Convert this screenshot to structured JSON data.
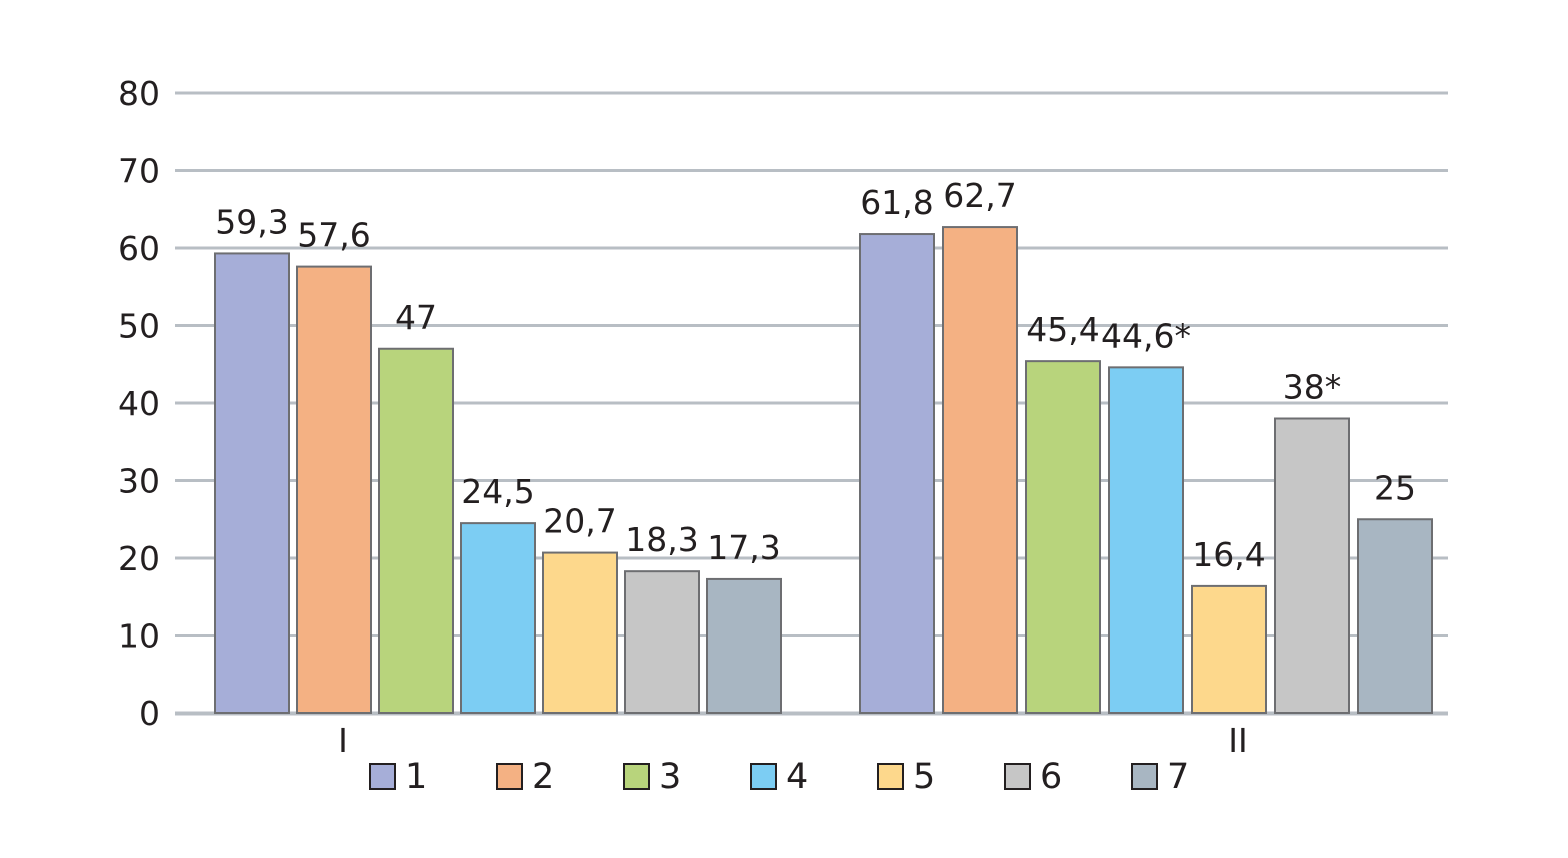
{
  "chart_data": {
    "type": "bar",
    "title": "",
    "xlabel": "",
    "ylabel": "",
    "ylim": [
      0,
      80
    ],
    "yticks": [
      0,
      10,
      20,
      30,
      40,
      50,
      60,
      70,
      80
    ],
    "grid": true,
    "legend_position": "bottom",
    "categories": [
      "I",
      "II"
    ],
    "series": [
      {
        "name": "1",
        "color": "#a6aed8",
        "values": [
          59.3,
          61.8
        ],
        "labels": [
          "59,3",
          "61,8"
        ]
      },
      {
        "name": "2",
        "color": "#f4b183",
        "values": [
          57.6,
          62.7
        ],
        "labels": [
          "57,6",
          "62,7"
        ]
      },
      {
        "name": "3",
        "color": "#b8d47c",
        "values": [
          47,
          45.4
        ],
        "labels": [
          "47",
          "45,4"
        ]
      },
      {
        "name": "4",
        "color": "#7ccdf3",
        "values": [
          24.5,
          44.6
        ],
        "labels": [
          "24,5",
          "44,6*"
        ]
      },
      {
        "name": "5",
        "color": "#fdd88c",
        "values": [
          20.7,
          16.4
        ],
        "labels": [
          "20,7",
          "16,4"
        ]
      },
      {
        "name": "6",
        "color": "#c6c6c6",
        "values": [
          18.3,
          38
        ],
        "labels": [
          "18,3",
          "38*"
        ]
      },
      {
        "name": "7",
        "color": "#a8b6c2",
        "values": [
          17.3,
          25
        ],
        "labels": [
          "17,3",
          "25"
        ]
      }
    ],
    "gridline_color": "#b8bec4",
    "bar_outline_color": "#6d6e71"
  }
}
